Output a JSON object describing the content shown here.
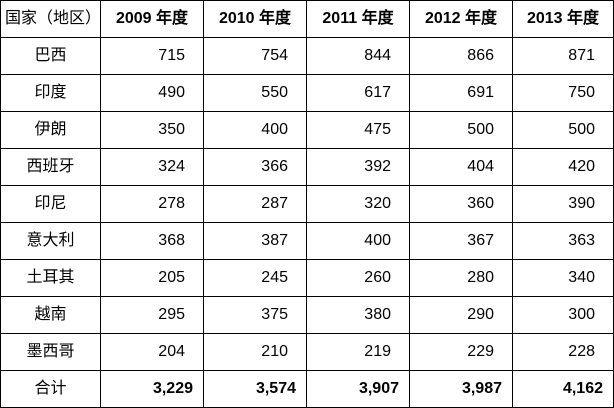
{
  "table": {
    "headers": [
      "国家（地区）",
      "2009 年度",
      "2010 年度",
      "2011 年度",
      "2012 年度",
      "2013 年度"
    ],
    "rows": [
      {
        "country": "巴西",
        "values": [
          "715",
          "754",
          "844",
          "866",
          "871"
        ]
      },
      {
        "country": "印度",
        "values": [
          "490",
          "550",
          "617",
          "691",
          "750"
        ]
      },
      {
        "country": "伊朗",
        "values": [
          "350",
          "400",
          "475",
          "500",
          "500"
        ]
      },
      {
        "country": "西班牙",
        "values": [
          "324",
          "366",
          "392",
          "404",
          "420"
        ]
      },
      {
        "country": "印尼",
        "values": [
          "278",
          "287",
          "320",
          "360",
          "390"
        ]
      },
      {
        "country": "意大利",
        "values": [
          "368",
          "387",
          "400",
          "367",
          "363"
        ]
      },
      {
        "country": "土耳其",
        "values": [
          "205",
          "245",
          "260",
          "280",
          "340"
        ]
      },
      {
        "country": "越南",
        "values": [
          "295",
          "375",
          "380",
          "290",
          "300"
        ]
      },
      {
        "country": "墨西哥",
        "values": [
          "204",
          "210",
          "219",
          "229",
          "228"
        ]
      }
    ],
    "total": {
      "label": "合计",
      "values": [
        "3,229",
        "3,574",
        "3,907",
        "3,987",
        "4,162"
      ]
    }
  }
}
